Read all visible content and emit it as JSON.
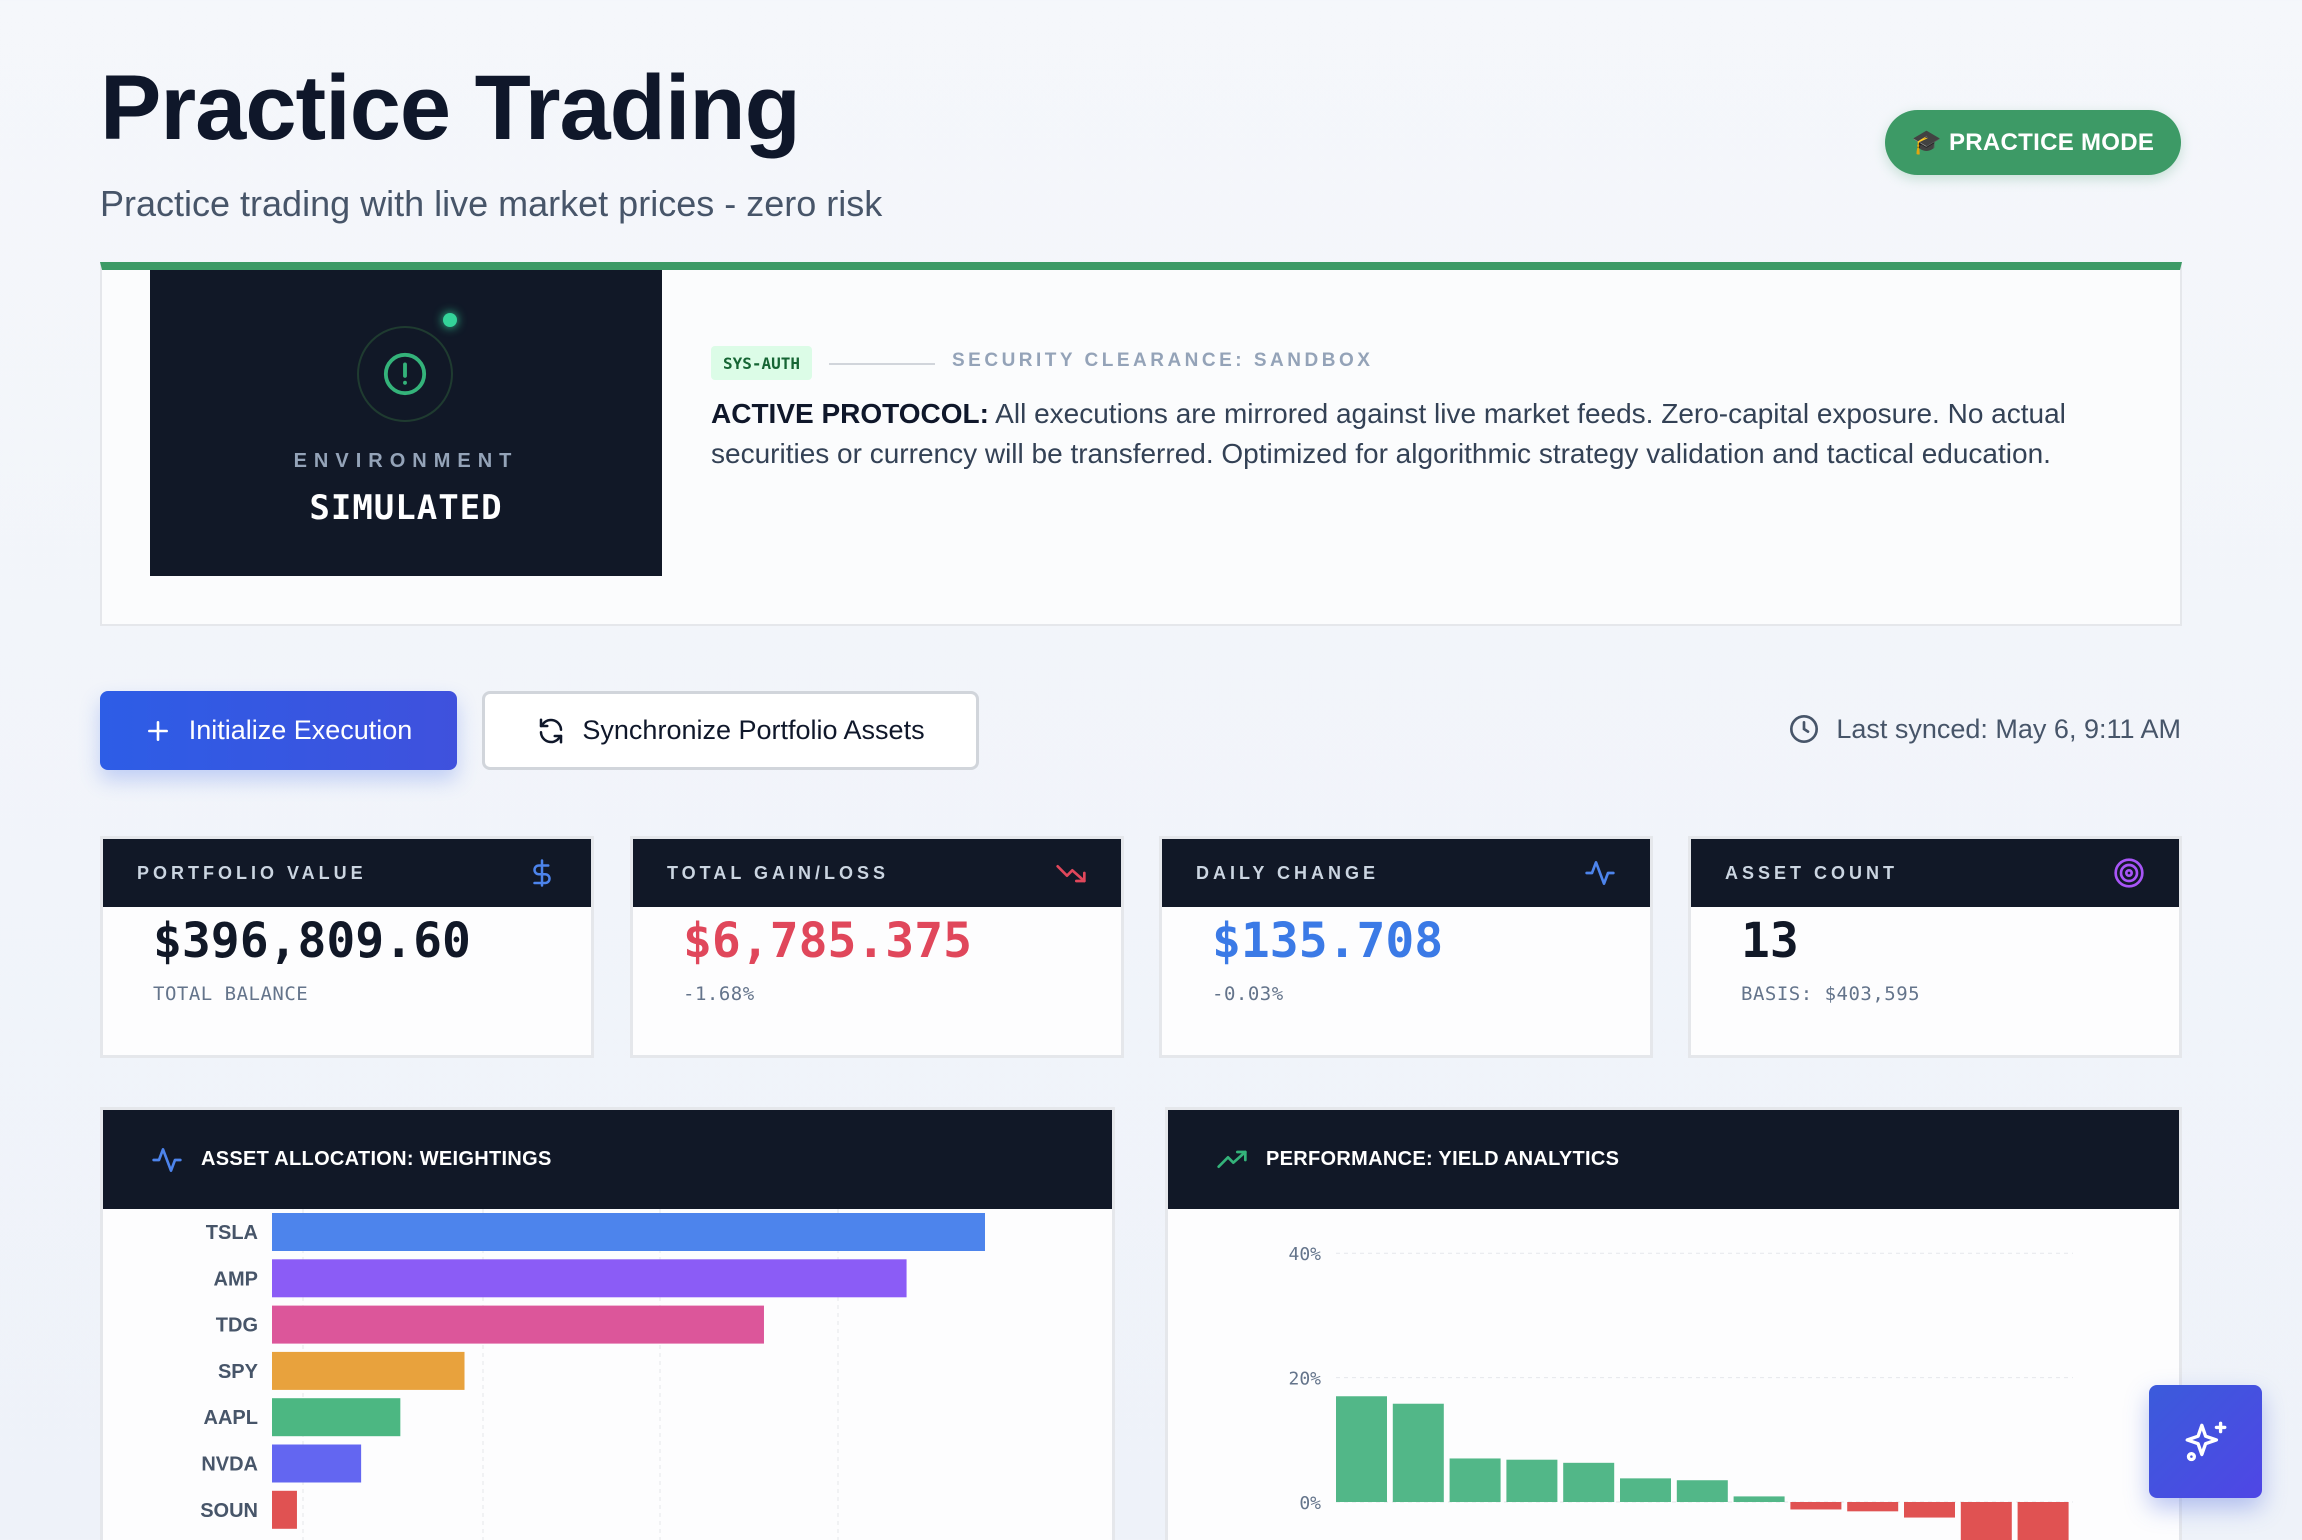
{
  "header": {
    "title": "Practice Trading",
    "subtitle": "Practice trading with live market prices - zero risk",
    "mode_badge": "🎓 PRACTICE MODE"
  },
  "banner": {
    "environment_label": "ENVIRONMENT",
    "environment_value": "SIMULATED",
    "auth_tag": "SYS-AUTH",
    "clearance": "SECURITY CLEARANCE: SANDBOX",
    "protocol_title": "ACTIVE PROTOCOL:",
    "protocol_body": "All executions are mirrored against live market feeds. Zero-capital exposure. No actual securities or currency will be transferred. Optimized for algorithmic strategy validation and tactical education."
  },
  "actions": {
    "primary_label": "Initialize Execution",
    "secondary_label": "Synchronize Portfolio Assets",
    "last_synced": "Last synced: May 6, 9:11 AM"
  },
  "stats": [
    {
      "label": "PORTFOLIO VALUE",
      "value": "$396,809.60",
      "sub": "TOTAL BALANCE",
      "icon": "dollar-icon",
      "color": "#111827"
    },
    {
      "label": "TOTAL GAIN/LOSS",
      "value": "$6,785.375",
      "sub": "-1.68%",
      "icon": "trending-down-icon",
      "color": "#e0475b"
    },
    {
      "label": "DAILY CHANGE",
      "value": "$135.708",
      "sub": "-0.03%",
      "icon": "activity-icon",
      "color": "#3b7ae6"
    },
    {
      "label": "ASSET COUNT",
      "value": "13",
      "sub": "BASIS: $403,595",
      "icon": "target-icon",
      "color": "#111827"
    }
  ],
  "panels": {
    "allocation_title": "ASSET ALLOCATION: WEIGHTINGS",
    "performance_title": "PERFORMANCE: YIELD ANALYTICS"
  },
  "chart_data": [
    {
      "type": "bar",
      "title": "ASSET ALLOCATION: WEIGHTINGS",
      "orientation": "horizontal",
      "categories": [
        "TSLA",
        "AMP",
        "TDG",
        "SPY",
        "AAPL",
        "NVDA",
        "SOUN"
      ],
      "values": [
        100,
        89,
        69,
        27,
        18,
        12.5,
        3.5
      ],
      "colors": [
        "#4d84ec",
        "#8b5cf6",
        "#dc569a",
        "#e8a23d",
        "#4cb782",
        "#6366f1",
        "#e05252"
      ],
      "xlim": [
        0,
        110
      ],
      "grid": true
    },
    {
      "type": "bar",
      "title": "PERFORMANCE: YIELD ANALYTICS",
      "y_ticks": [
        "40%",
        "20%",
        "0%"
      ],
      "ylim": [
        0,
        40
      ],
      "values": [
        17,
        15.8,
        7,
        6.8,
        6.3,
        3.8,
        3.5,
        0.9,
        -1.2,
        -1.5,
        -2.5,
        -6.5,
        -6.6
      ],
      "positive_color": "#52b788",
      "negative_color": "#e05252",
      "grid": true
    }
  ]
}
